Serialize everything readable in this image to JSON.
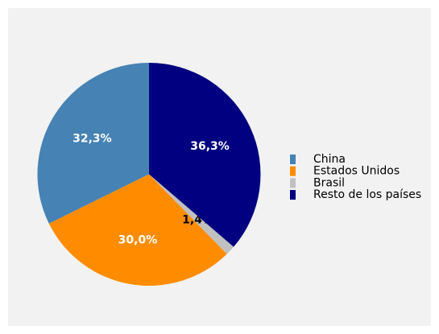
{
  "chart_data": {
    "type": "pie",
    "categories": [
      "China",
      "Estados Unidos",
      "Brasil",
      "Resto de los países"
    ],
    "values": [
      32.3,
      30.0,
      1.4,
      36.3
    ],
    "value_labels": [
      "32,3%",
      "30,0%",
      "1,4%",
      "36,3%"
    ],
    "colors": [
      "#4682b4",
      "#ff8c00",
      "#c0c0c0",
      "#000080"
    ],
    "label_colors": [
      "#ffffff",
      "#ffffff",
      "#000000",
      "#ffffff"
    ],
    "legend": "right"
  }
}
